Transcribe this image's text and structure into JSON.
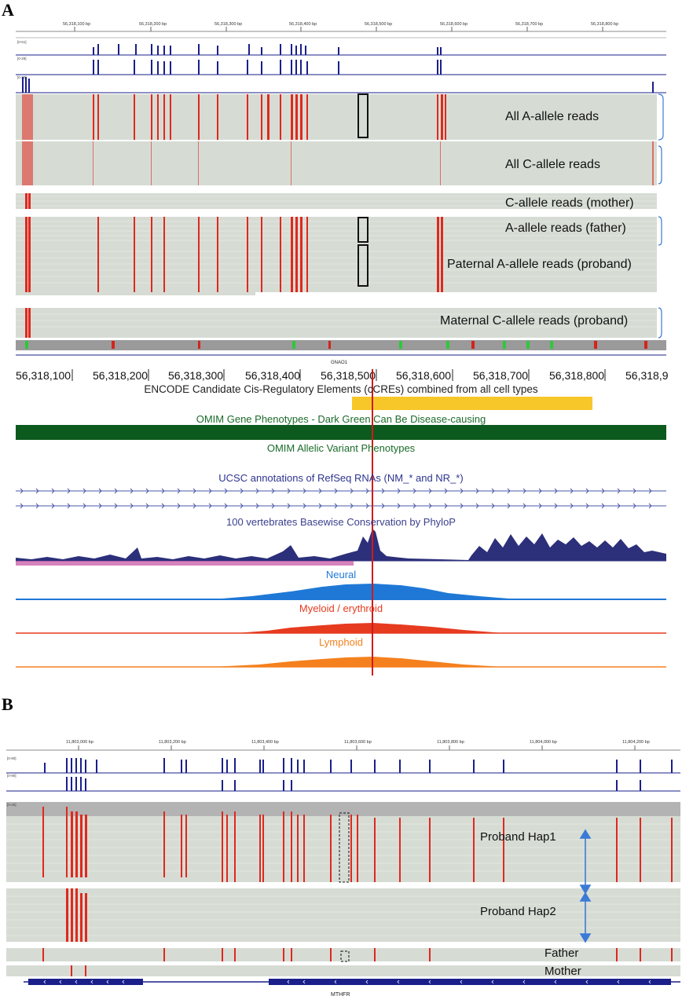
{
  "panels": {
    "a": "A",
    "b": "B"
  },
  "panel_a": {
    "top_ruler_ticks": [
      "56,318,100 bp",
      "56,318,200 bp",
      "56,318,300 bp",
      "56,318,400 bp",
      "56,318,500 bp",
      "56,318,600 bp",
      "56,318,700 bp",
      "56,318,800 bp"
    ],
    "coverage_ranges": [
      "[0-51]",
      "[0-28]",
      "[0-20]"
    ],
    "group_labels": [
      "All A-allele reads",
      "All C-allele reads",
      "C-allele reads (mother)",
      "A-allele reads (father)",
      "Paternal A-allele reads (proband)",
      "Maternal C-allele reads (proband)"
    ],
    "gene_name": "GNAO1",
    "browser_ruler_ticks": [
      "56,318,100",
      "56,318,200",
      "56,318,300",
      "56,318,400",
      "56,318,500",
      "56,318,600",
      "56,318,700",
      "56,318,800",
      "56,318,9"
    ],
    "tracks": {
      "encode": "ENCODE Candidate Cis-Regulatory Elements (cCREs) combined from all cell types",
      "omim_gene": "OMIM Gene Phenotypes - Dark Green Can Be Disease-causing",
      "omim_allelic": "OMIM Allelic Variant Phenotypes",
      "refseq": "UCSC annotations of RefSeq RNAs (NM_* and NR_*)",
      "phylop": "100 vertebrates Basewise Conservation by PhyloP",
      "neural": "Neural",
      "myeloid": "Myeloid / erythroid",
      "lymphoid": "Lymphoid"
    }
  },
  "panel_b": {
    "top_ruler_ticks": [
      "11,803,000 bp",
      "11,803,200 bp",
      "11,803,400 bp",
      "11,803,600 bp",
      "11,803,800 bp",
      "11,804,000 bp",
      "11,804,200 bp"
    ],
    "coverage_ranges": [
      "[0-90]",
      "[0-90]",
      "[0-25]"
    ],
    "group_labels": [
      "Proband Hap1",
      "Proband Hap2",
      "Father",
      "Mother"
    ],
    "gene_name": "MTHFR"
  },
  "colors": {
    "coverage": "#1a1f8a",
    "mismatch": "#e0281e",
    "read_bg": "#d6dcd4",
    "encode": "#f7c72a",
    "omim": "#0c5a1e",
    "neural": "#1f78d6",
    "myeloid": "#e63b1f",
    "lymphoid": "#f5801e"
  }
}
